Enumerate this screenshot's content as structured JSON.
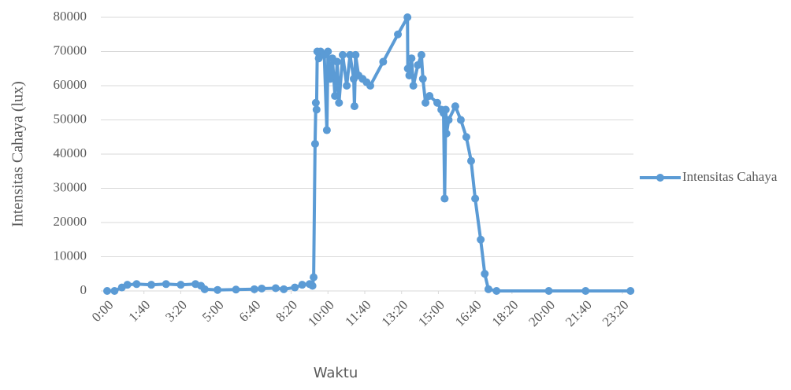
{
  "chart_data": {
    "type": "line",
    "x_label": "Waktu",
    "y_label": "Intensitas Cahaya (lux)",
    "x": [
      0,
      20,
      40,
      55,
      80,
      120,
      160,
      200,
      240,
      255,
      265,
      300,
      350,
      400,
      420,
      458,
      480,
      510,
      530,
      550,
      558,
      561,
      565,
      567,
      569,
      571,
      575,
      580,
      590,
      597,
      600,
      606,
      612,
      619,
      625,
      630,
      640,
      651,
      660,
      670,
      672,
      675,
      683,
      694,
      705,
      715,
      750,
      790,
      816,
      817,
      821,
      827,
      832,
      844,
      854,
      858,
      865,
      876,
      897,
      908,
      914,
      917,
      920,
      922,
      928,
      946,
      961,
      976,
      989,
      1000,
      1015,
      1026,
      1036,
      1058,
      1200,
      1300,
      1422
    ],
    "series": [
      {
        "name": "Intensitas Cahaya",
        "color": "#5b9bd5",
        "values": [
          0,
          0,
          1000,
          1800,
          2000,
          1800,
          2000,
          1800,
          2000,
          1500,
          500,
          300,
          400,
          500,
          700,
          800,
          500,
          1000,
          1800,
          2000,
          1500,
          4000,
          43000,
          55000,
          53000,
          70000,
          68000,
          70000,
          69000,
          47000,
          70000,
          62000,
          68000,
          57000,
          67000,
          55000,
          69000,
          60000,
          69000,
          62000,
          54000,
          69000,
          63000,
          62000,
          61000,
          60000,
          67000,
          75000,
          80000,
          65000,
          63000,
          68000,
          60000,
          66000,
          69000,
          62000,
          55000,
          57000,
          55000,
          53000,
          52000,
          27000,
          53000,
          46000,
          50000,
          54000,
          50000,
          45000,
          38000,
          27000,
          15000,
          5000,
          500,
          0,
          0,
          0,
          0
        ]
      }
    ],
    "xlim": [
      0,
      1430
    ],
    "xticks": [
      {
        "value": 0,
        "label": "0:00"
      },
      {
        "value": 100,
        "label": "1:40"
      },
      {
        "value": 200,
        "label": "3:20"
      },
      {
        "value": 300,
        "label": "5:00"
      },
      {
        "value": 400,
        "label": "6:40"
      },
      {
        "value": 500,
        "label": "8:20"
      },
      {
        "value": 600,
        "label": "10:00"
      },
      {
        "value": 700,
        "label": "11:40"
      },
      {
        "value": 800,
        "label": "13:20"
      },
      {
        "value": 900,
        "label": "15:00"
      },
      {
        "value": 1000,
        "label": "16:40"
      },
      {
        "value": 1100,
        "label": "18:20"
      },
      {
        "value": 1200,
        "label": "20:00"
      },
      {
        "value": 1300,
        "label": "21:40"
      },
      {
        "value": 1400,
        "label": "23:20"
      }
    ],
    "ylim": [
      0,
      80000
    ],
    "yticks": [
      0,
      10000,
      20000,
      30000,
      40000,
      50000,
      60000,
      70000,
      80000
    ],
    "grid": true,
    "legend": "right"
  }
}
